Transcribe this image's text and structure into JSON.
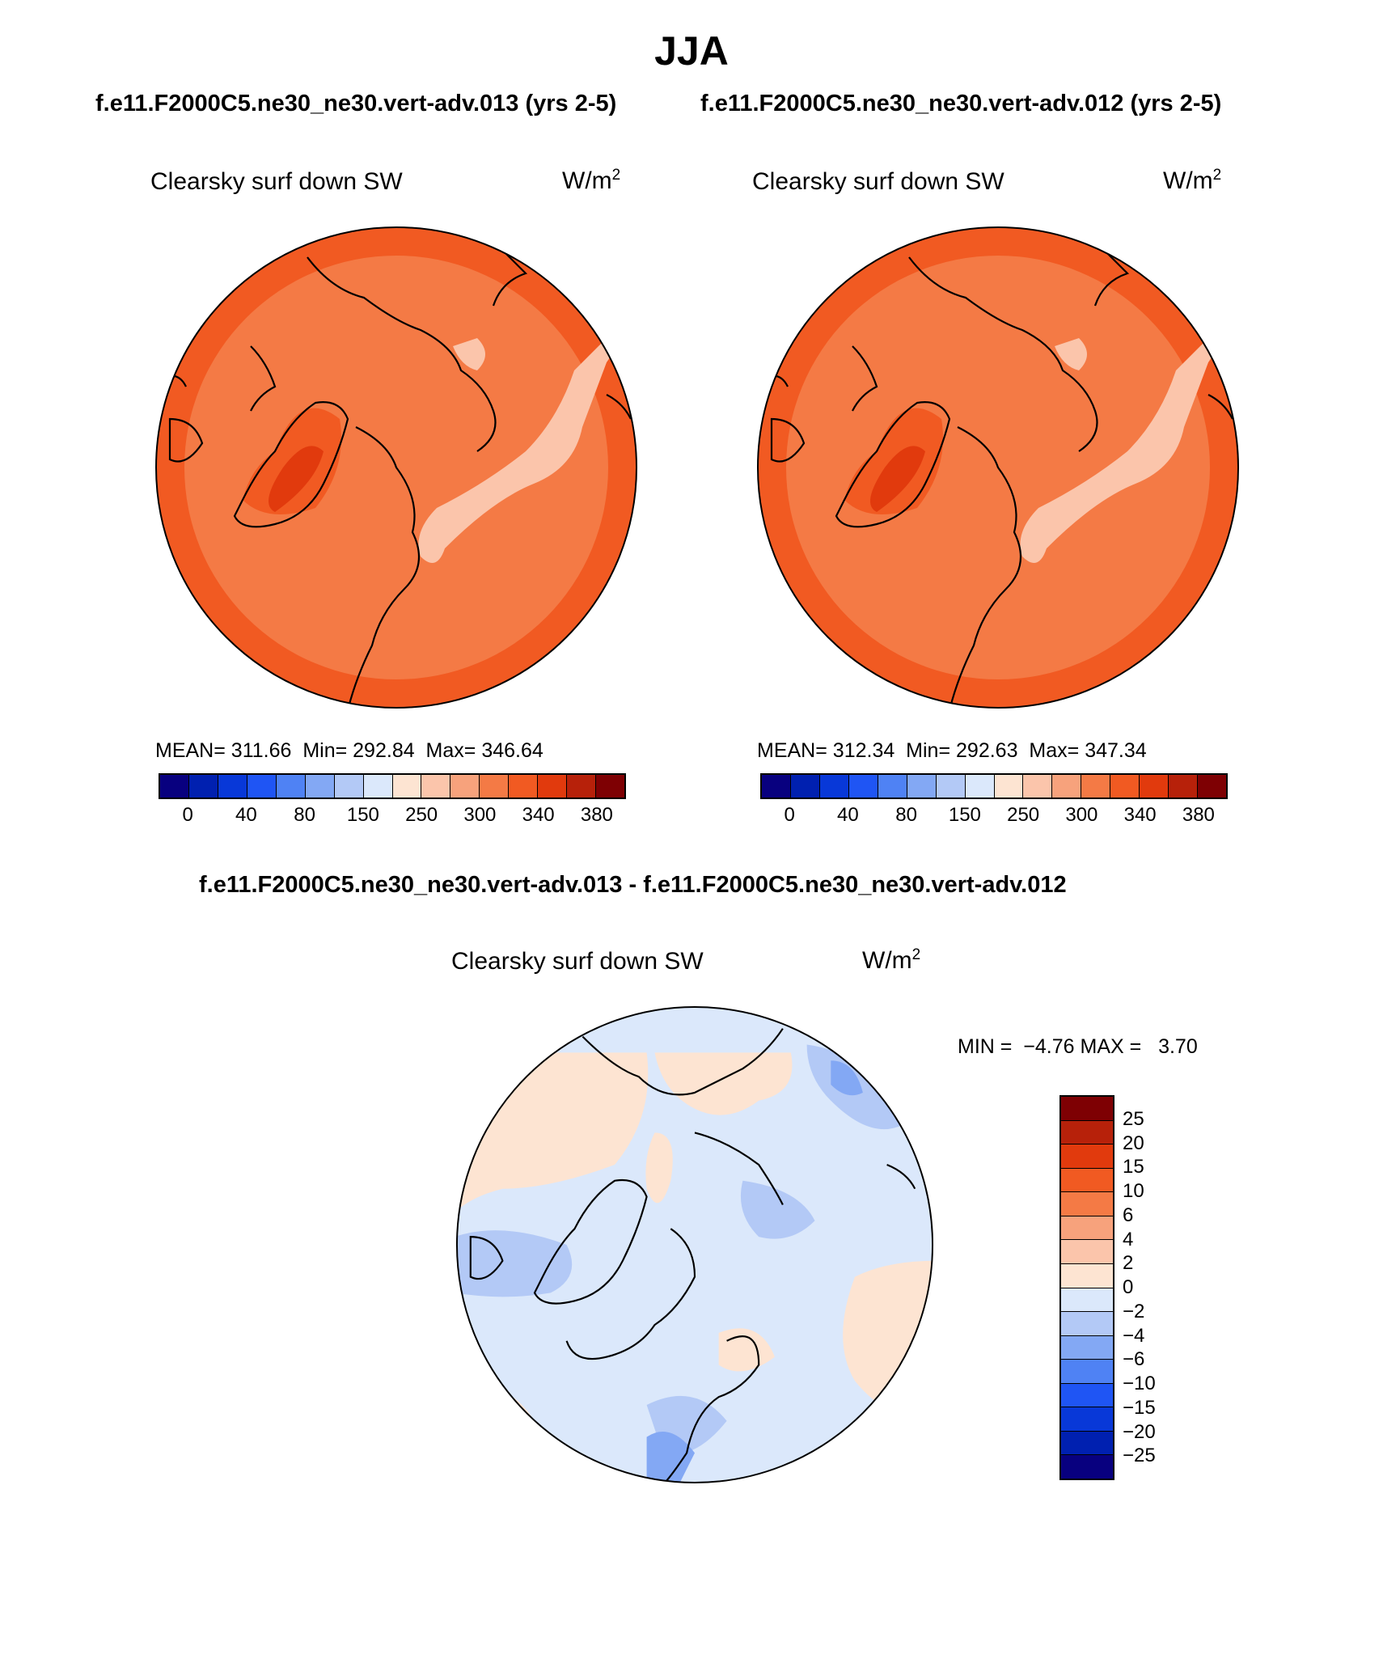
{
  "title": "JJA",
  "subtitles": {
    "left": "f.e11.F2000C5.ne30_ne30.vert-adv.013 (yrs 2-5)",
    "right": "f.e11.F2000C5.ne30_ne30.vert-adv.012 (yrs 2-5)",
    "diff": "f.e11.F2000C5.ne30_ne30.vert-adv.013 - f.e11.F2000C5.ne30_ne30.vert-adv.012"
  },
  "variable": "Clearsky surf down SW",
  "units_base": "W/m",
  "units_sup": "2",
  "panels": [
    {
      "mean_label": "MEAN=",
      "mean": "311.66",
      "min_label": "Min=",
      "min": "292.84",
      "max_label": "Max=",
      "max": "346.64"
    },
    {
      "mean_label": "MEAN=",
      "mean": "312.34",
      "min_label": "Min=",
      "min": "292.63",
      "max_label": "Max=",
      "max": "347.34"
    }
  ],
  "diff_stats": {
    "min_label": "MIN =",
    "min": "−4.76",
    "max_label": "MAX =",
    "max": "3.70"
  },
  "colorbar_main": {
    "colors": [
      "#08007f",
      "#0020b0",
      "#0838d8",
      "#1f55f4",
      "#4f82f4",
      "#83a8f4",
      "#b3c9f6",
      "#dbe8fb",
      "#fde4d2",
      "#fbc5ab",
      "#f7a27c",
      "#f47a45",
      "#f15a22",
      "#e13a0d",
      "#b7210a",
      "#7e0003"
    ],
    "ticks": [
      "0",
      "40",
      "80",
      "150",
      "250",
      "300",
      "340",
      "380"
    ]
  },
  "colorbar_diff": {
    "colors": [
      "#7e0003",
      "#b7210a",
      "#e13a0d",
      "#f15a22",
      "#f47a45",
      "#f7a27c",
      "#fbc5ab",
      "#fde4d2",
      "#dbe8fb",
      "#b3c9f6",
      "#83a8f4",
      "#4f82f4",
      "#1f55f4",
      "#0838d8",
      "#0020b0",
      "#08007f"
    ],
    "ticks": [
      "25",
      "20",
      "15",
      "10",
      "6",
      "4",
      "2",
      "0",
      "−2",
      "−4",
      "−6",
      "−10",
      "−15",
      "−20",
      "−25"
    ]
  },
  "map_colors": {
    "ocean_main": "#f47a45",
    "edge_main": "#f15a22",
    "land_light": "#fbc5ab",
    "greenland_hi": "#e13a0d",
    "diff_base": "#dbe8fb",
    "diff_pos": "#fde4d2",
    "diff_neg": "#b3c9f6",
    "diff_neg2": "#83a8f4"
  }
}
